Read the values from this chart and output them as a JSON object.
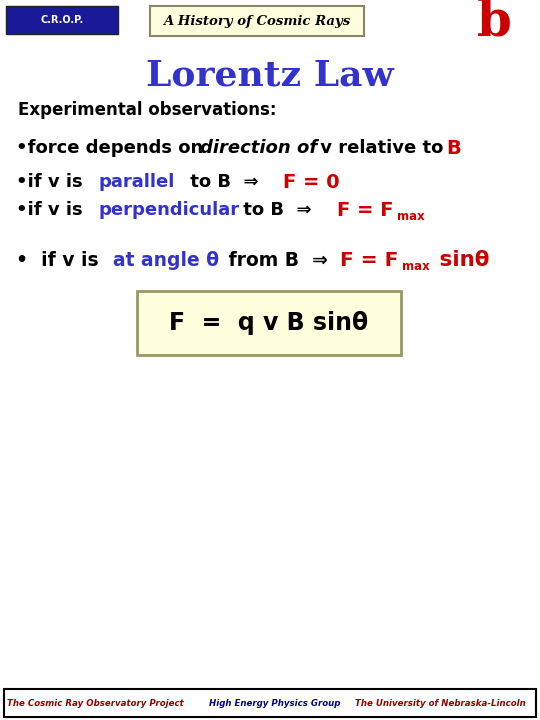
{
  "bg_color": "#ffffff",
  "header_box_color": "#ffffdd",
  "header_box_edge": "#888866",
  "header_text": "A History of Cosmic Rays",
  "title": "Lorentz Law",
  "title_color": "#3333cc",
  "obs_label": "Experimental observations:",
  "footer_texts": [
    "The Cosmic Ray Observatory Project",
    "High Energy Physics Group",
    "The University of Nebraska-Lincoln"
  ],
  "footer_colors": [
    "#990000",
    "#000099",
    "#990000"
  ],
  "formula_box_color": "#ffffdd",
  "formula_box_edge": "#999966",
  "crop_bg": "#1a1a99",
  "red": "#cc0000",
  "blue": "#3333cc",
  "black": "#000000"
}
